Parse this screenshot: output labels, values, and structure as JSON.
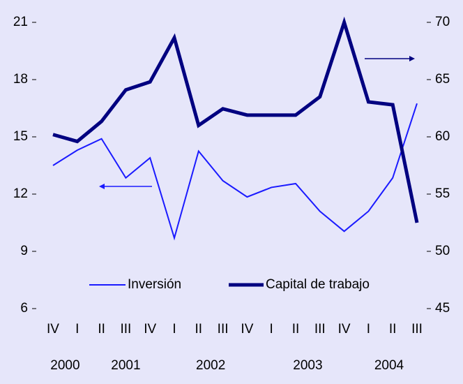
{
  "chart_data": {
    "type": "line",
    "categories": [
      "IV",
      "I",
      "II",
      "III",
      "IV",
      "I",
      "II",
      "III",
      "IV",
      "I",
      "II",
      "III",
      "IV",
      "I",
      "II",
      "III"
    ],
    "year_labels": [
      "2000",
      "2001",
      "2002",
      "2003",
      "2004"
    ],
    "series": [
      {
        "name": "Inversión",
        "color": "#1a1aff",
        "values": [
          13.5,
          14.3,
          14.9,
          12.85,
          13.9,
          9.7,
          14.25,
          12.7,
          11.85,
          12.35,
          12.55,
          11.1,
          10.05,
          11.1,
          12.85,
          16.75
        ]
      },
      {
        "name": "Capital de trabajo",
        "color": "#000080",
        "axis": "y2",
        "values": [
          60.2,
          59.6,
          61.35,
          64.1,
          64.8,
          68.65,
          61.0,
          62.45,
          61.9,
          61.9,
          61.9,
          63.5,
          70,
          63.05,
          62.8,
          52.5
        ]
      }
    ],
    "ylim": [
      6,
      21
    ],
    "yticks": [
      6,
      9,
      12,
      15,
      18,
      21
    ],
    "y2lim": [
      45,
      70
    ],
    "y2ticks": [
      45,
      50,
      55,
      60,
      65,
      70
    ],
    "grid": false
  }
}
